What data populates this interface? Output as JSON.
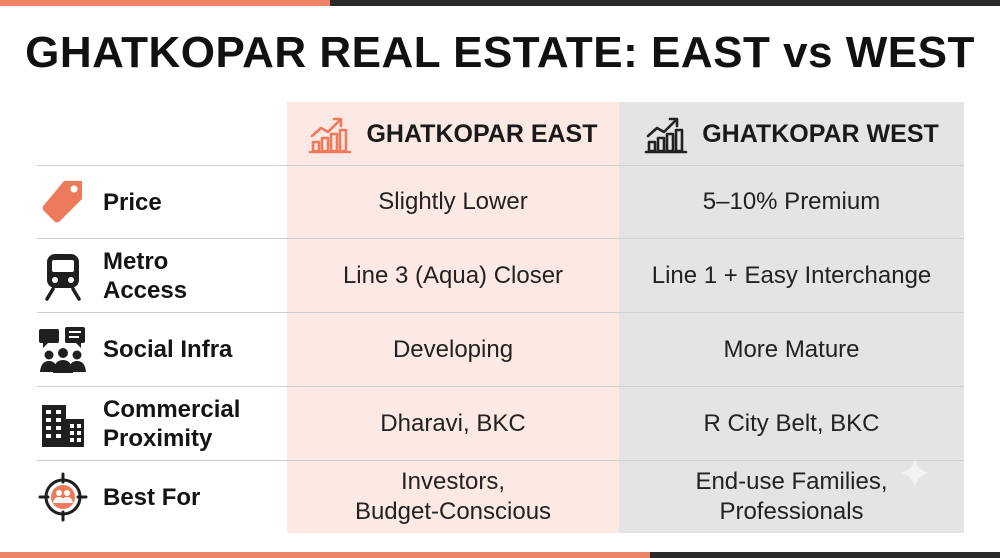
{
  "title": "GHATKOPAR REAL ESTATE: EAST vs WEST",
  "columns": {
    "east": {
      "label": "GHATKOPAR EAST",
      "icon": "growth-chart-icon",
      "color": "#ee7a5c"
    },
    "west": {
      "label": "GHATKOPAR WEST",
      "icon": "growth-chart-icon",
      "color": "#222222"
    }
  },
  "rows": [
    {
      "label": "Price",
      "icon": "price-tag-icon",
      "east": "Slightly Lower",
      "west": "5–10% Premium"
    },
    {
      "label": "Metro\nAccess",
      "icon": "metro-train-icon",
      "east": "Line 3 (Aqua) Closer",
      "west": "Line 1 + Easy Interchange"
    },
    {
      "label": "Social Infra",
      "icon": "community-people-icon",
      "east": "Developing",
      "west": "More Mature"
    },
    {
      "label": "Commercial\nProximity",
      "icon": "office-buildings-icon",
      "east": "Dharavi, BKC",
      "west": "R City Belt, BKC"
    },
    {
      "label": "Best For",
      "icon": "target-audience-icon",
      "east": "Investors,\nBudget-Conscious",
      "west": "End-use Families,\nProfessionals"
    }
  ],
  "colors": {
    "accent": "#ee7a5c",
    "east_bg": "#fde9e3",
    "west_bg": "#e4e4e4",
    "dark": "#2a2a2a"
  }
}
